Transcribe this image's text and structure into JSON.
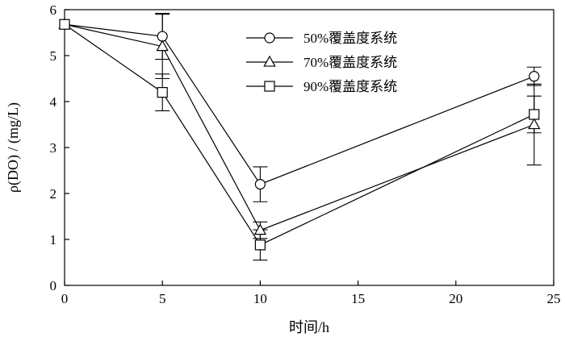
{
  "chart_data": {
    "type": "line",
    "xlabel": "时间/h",
    "ylabel": "ρ(DO) / (mg/L)",
    "xlim": [
      0,
      25
    ],
    "ylim": [
      0,
      6
    ],
    "xticks": [
      0,
      5,
      10,
      15,
      20,
      25
    ],
    "yticks": [
      0,
      1,
      2,
      3,
      4,
      5,
      6
    ],
    "grid": false,
    "legend_position": "top-right",
    "x": [
      0,
      5,
      10,
      24
    ],
    "series": [
      {
        "name": "50%覆盖度系统",
        "marker": "circle",
        "values": [
          5.68,
          5.42,
          2.2,
          4.55
        ],
        "error": [
          0.05,
          0.5,
          0.38,
          0.2
        ]
      },
      {
        "name": "70%覆盖度系统",
        "marker": "triangle",
        "values": [
          5.68,
          5.2,
          1.2,
          3.5
        ],
        "error": [
          0.05,
          0.7,
          0.18,
          0.88
        ]
      },
      {
        "name": "90%覆盖度系统",
        "marker": "square",
        "values": [
          5.68,
          4.2,
          0.88,
          3.72
        ],
        "error": [
          0.05,
          0.4,
          0.33,
          0.4
        ]
      }
    ]
  }
}
